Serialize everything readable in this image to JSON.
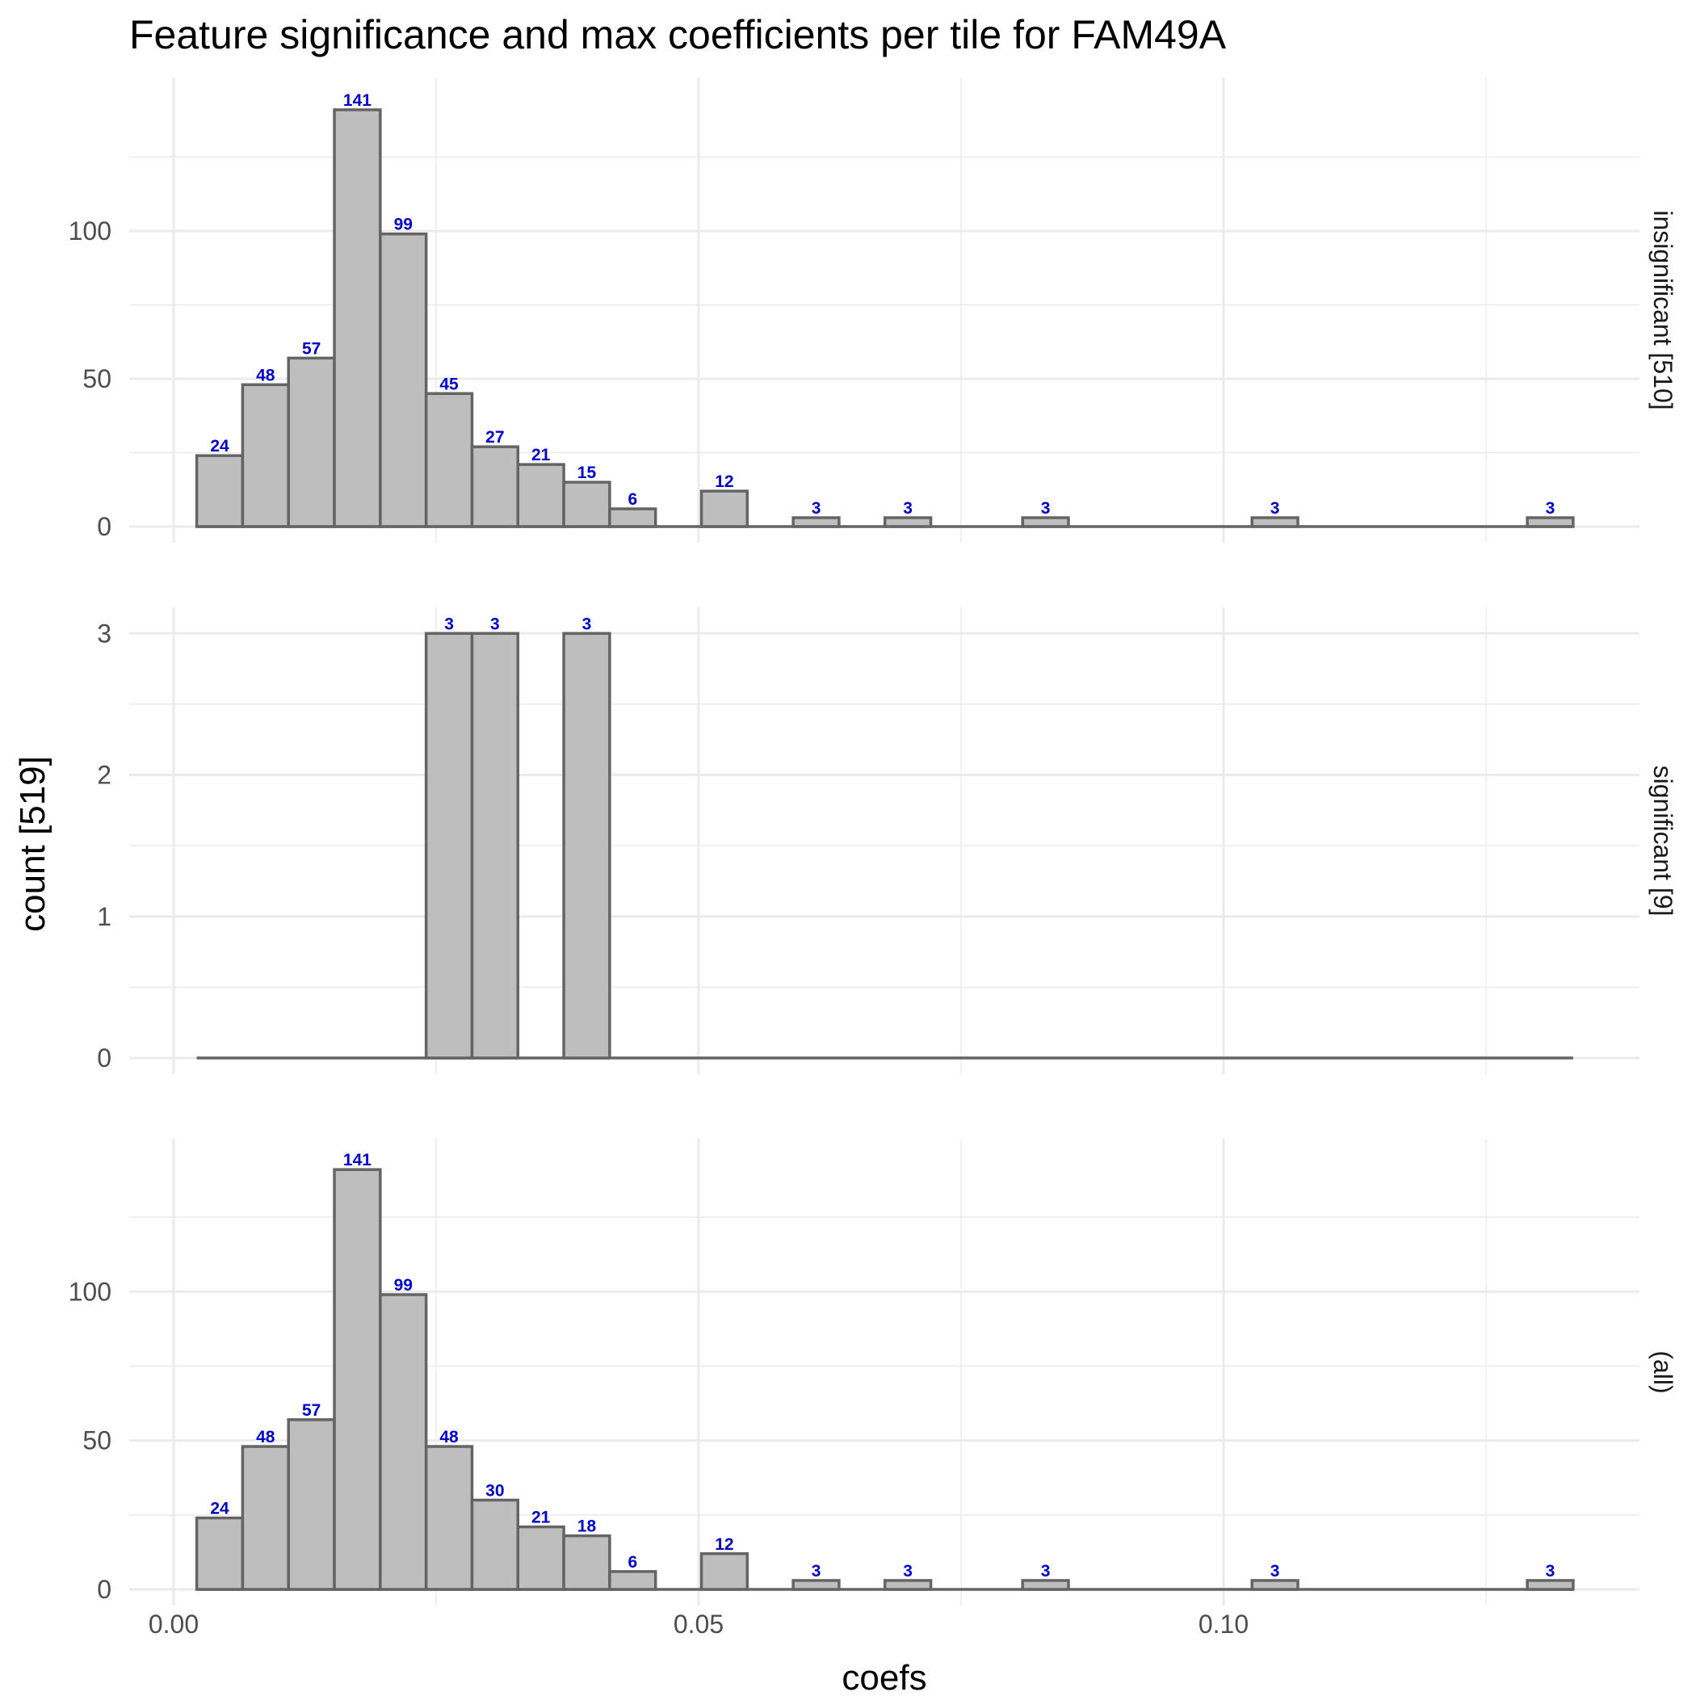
{
  "chart_data": {
    "type": "bar",
    "title": "Feature significance and max coefficients per tile for FAM49A",
    "xlabel": "coefs",
    "ylabel": "count [519]",
    "xlim": [
      0.0,
      0.14
    ],
    "x_ticks": [
      "0.00",
      "0.05",
      "0.10"
    ],
    "x_tick_values": [
      0.0,
      0.05,
      0.1
    ],
    "bin_range": [
      0.0022,
      0.1333
    ],
    "bin_count": 30,
    "label_color": "#0000cd",
    "bar_fill": "#bebebe",
    "bar_stroke": "#646464",
    "grid": true,
    "panels": [
      {
        "strip": "insignificant [510]",
        "ylim": [
          0,
          150
        ],
        "y_ticks": [
          "0",
          "50",
          "100"
        ],
        "y_tick_values": [
          0,
          50,
          100
        ],
        "values": [
          24,
          48,
          57,
          141,
          99,
          45,
          27,
          21,
          15,
          6,
          0,
          12,
          0,
          3,
          0,
          3,
          0,
          0,
          3,
          0,
          0,
          0,
          0,
          3,
          0,
          0,
          0,
          0,
          0,
          3
        ],
        "labels": [
          "24",
          "48",
          "57",
          "141",
          "99",
          "45",
          "27",
          "21",
          "15",
          "6",
          "",
          "12",
          "",
          "3",
          "",
          "3",
          "",
          "",
          "3",
          "",
          "",
          "",
          "",
          "3",
          "",
          "",
          "",
          "",
          "",
          "3"
        ]
      },
      {
        "strip": "significant [9]",
        "ylim": [
          0,
          3.15
        ],
        "y_ticks": [
          "0",
          "1",
          "2",
          "3"
        ],
        "y_tick_values": [
          0,
          1,
          2,
          3
        ],
        "values": [
          0,
          0,
          0,
          0,
          0,
          3,
          3,
          0,
          3,
          0,
          0,
          0,
          0,
          0,
          0,
          0,
          0,
          0,
          0,
          0,
          0,
          0,
          0,
          0,
          0,
          0,
          0,
          0,
          0,
          0
        ],
        "labels": [
          "",
          "",
          "",
          "",
          "",
          "3",
          "3",
          "",
          "3",
          "",
          "",
          "",
          "",
          "",
          "",
          "",
          "",
          "",
          "",
          "",
          "",
          "",
          "",
          "",
          "",
          "",
          "",
          "",
          "",
          ""
        ]
      },
      {
        "strip": "(all)",
        "ylim": [
          0,
          150
        ],
        "y_ticks": [
          "0",
          "50",
          "100"
        ],
        "y_tick_values": [
          0,
          50,
          100
        ],
        "values": [
          24,
          48,
          57,
          141,
          99,
          48,
          30,
          21,
          18,
          6,
          0,
          12,
          0,
          3,
          0,
          3,
          0,
          0,
          3,
          0,
          0,
          0,
          0,
          3,
          0,
          0,
          0,
          0,
          0,
          3
        ],
        "labels": [
          "24",
          "48",
          "57",
          "141",
          "99",
          "48",
          "30",
          "21",
          "18",
          "6",
          "",
          "12",
          "",
          "3",
          "",
          "3",
          "",
          "",
          "3",
          "",
          "",
          "",
          "",
          "3",
          "",
          "",
          "",
          "",
          "",
          "3"
        ]
      }
    ]
  }
}
